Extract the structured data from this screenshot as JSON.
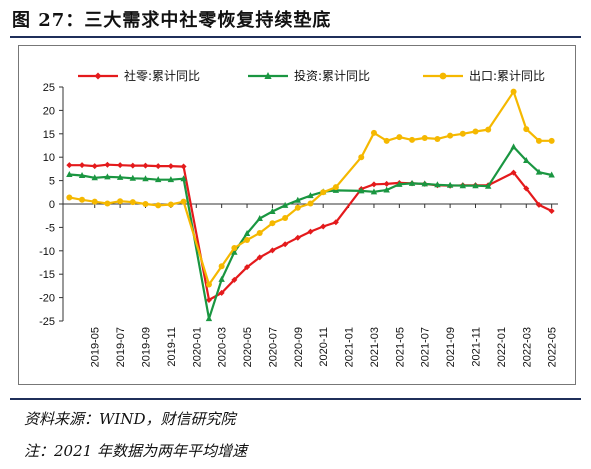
{
  "title": "图 27：三大需求中社零恢复持续垫底",
  "source": "资料来源：WIND，财信研究院",
  "note": "注：2021 年数据为两年平均增速",
  "chart_data": {
    "type": "line",
    "ylim": [
      -25,
      25
    ],
    "yticks": [
      25,
      20,
      15,
      10,
      5,
      0,
      -5,
      -10,
      -15,
      -20,
      -25
    ],
    "grid": false,
    "legend_position": "top",
    "xtick_labels": [
      "2019-05",
      "2019-07",
      "2019-09",
      "2019-11",
      "2020-01",
      "2020-03",
      "2020-05",
      "2020-07",
      "2020-09",
      "2020-11",
      "2021-01",
      "2021-03",
      "2021-05",
      "2021-07",
      "2021-09",
      "2021-11",
      "2022-01",
      "2022-03",
      "2022-05"
    ],
    "x": [
      "2019-03",
      "2019-04",
      "2019-05",
      "2019-06",
      "2019-07",
      "2019-08",
      "2019-09",
      "2019-10",
      "2019-11",
      "2019-12",
      "2020-01",
      "2020-02",
      "2020-03",
      "2020-04",
      "2020-05",
      "2020-06",
      "2020-07",
      "2020-08",
      "2020-09",
      "2020-10",
      "2020-11",
      "2020-12",
      "2021-01",
      "2021-02",
      "2021-03",
      "2021-04",
      "2021-05",
      "2021-06",
      "2021-07",
      "2021-08",
      "2021-09",
      "2021-10",
      "2021-11",
      "2021-12",
      "2022-01",
      "2022-02",
      "2022-03",
      "2022-04",
      "2022-05"
    ],
    "series": [
      {
        "name": "社零:累计同比",
        "color": "#e41a1c",
        "marker": "diamond",
        "values": [
          8.3,
          8.3,
          8.1,
          8.4,
          8.3,
          8.2,
          8.2,
          8.1,
          8.1,
          8.0,
          null,
          -20.5,
          -19.0,
          -16.2,
          -13.5,
          -11.4,
          -9.9,
          -8.6,
          -7.2,
          -5.9,
          -4.8,
          -3.9,
          null,
          3.2,
          4.2,
          4.3,
          4.5,
          4.4,
          4.3,
          4.0,
          3.9,
          4.0,
          4.0,
          4.0,
          null,
          6.7,
          3.3,
          -0.2,
          -1.5
        ]
      },
      {
        "name": "投资:累计同比",
        "color": "#1a9641",
        "marker": "triangle",
        "values": [
          6.3,
          6.1,
          5.6,
          5.8,
          5.7,
          5.5,
          5.4,
          5.2,
          5.2,
          5.4,
          null,
          -24.5,
          -16.1,
          -10.3,
          -6.3,
          -3.1,
          -1.6,
          -0.3,
          0.8,
          1.8,
          2.6,
          2.9,
          null,
          2.8,
          2.6,
          3.0,
          4.2,
          4.4,
          4.3,
          4.1,
          4.0,
          3.9,
          3.9,
          3.8,
          null,
          12.2,
          9.3,
          6.8,
          6.2
        ]
      },
      {
        "name": "出口:累计同比",
        "color": "#f5b800",
        "marker": "circle",
        "values": [
          1.4,
          0.9,
          0.5,
          0.1,
          0.6,
          0.4,
          0.0,
          -0.3,
          -0.1,
          0.5,
          null,
          -17.2,
          -13.3,
          -9.4,
          -7.7,
          -6.2,
          -4.1,
          -3.0,
          -0.8,
          0.1,
          2.5,
          3.6,
          null,
          10.0,
          15.2,
          13.5,
          14.3,
          13.7,
          14.1,
          13.9,
          14.6,
          15.0,
          15.5,
          15.9,
          null,
          24.0,
          16.0,
          13.5,
          13.5
        ]
      }
    ]
  }
}
